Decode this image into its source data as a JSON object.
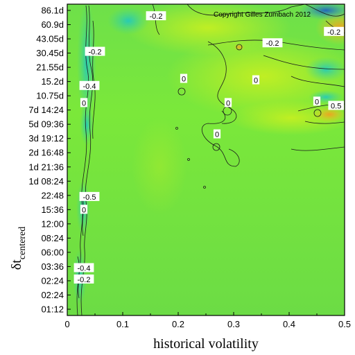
{
  "chart_data": {
    "type": "heatmap",
    "title": "",
    "copyright": "Copyright Gilles Zumbach 2012",
    "xlabel": "historical volatility",
    "ylabel": {
      "main": "δt",
      "subscript": "centered"
    },
    "xlim": [
      0,
      0.5
    ],
    "x_ticks": [
      "0",
      "0.1",
      "0.2",
      "0.3",
      "0.4",
      "0.5"
    ],
    "y_ticks": [
      "01:12",
      "02:24",
      "02:24",
      "03:36",
      "06:00",
      "08:24",
      "12:00",
      "15:36",
      "22:48",
      "1d 08:24",
      "1d 21:36",
      "2d 16:48",
      "3d 19:12",
      "5d 09:36",
      "7d 14:24",
      "10.75d",
      "15.2d",
      "21.55d",
      "30.45d",
      "43.05d",
      "60.9d",
      "86.1d"
    ],
    "grid": false,
    "colormap_note": "values near 0 shown green; positive toward yellow/orange; negative toward cyan/blue",
    "contour_labels": [
      {
        "text": "-0.2",
        "x": 0.16,
        "y_index": 20.6
      },
      {
        "text": "-0.2",
        "x": 0.37,
        "y_index": 18.7
      },
      {
        "text": "-0.2",
        "x": 0.49,
        "y_index": 19.5
      },
      {
        "text": "-0.2",
        "x": 0.05,
        "y_index": 18.1
      },
      {
        "text": "-0.4",
        "x": 0.04,
        "y_index": 15.7
      },
      {
        "text": "0",
        "x": 0.03,
        "y_index": 14.5
      },
      {
        "text": "0",
        "x": 0.21,
        "y_index": 16.2
      },
      {
        "text": "0",
        "x": 0.34,
        "y_index": 16.1
      },
      {
        "text": "0",
        "x": 0.29,
        "y_index": 14.5
      },
      {
        "text": "0",
        "x": 0.27,
        "y_index": 12.3
      },
      {
        "text": "0",
        "x": 0.45,
        "y_index": 14.6
      },
      {
        "text": "0.5",
        "x": 0.49,
        "y_index": 14.3
      },
      {
        "text": "-0.5",
        "x": 0.04,
        "y_index": 7.9
      },
      {
        "text": "0",
        "x": 0.03,
        "y_index": 7.0
      },
      {
        "text": "-0.4",
        "x": 0.03,
        "y_index": 2.9
      },
      {
        "text": "-0.2",
        "x": 0.03,
        "y_index": 2.1
      }
    ]
  }
}
